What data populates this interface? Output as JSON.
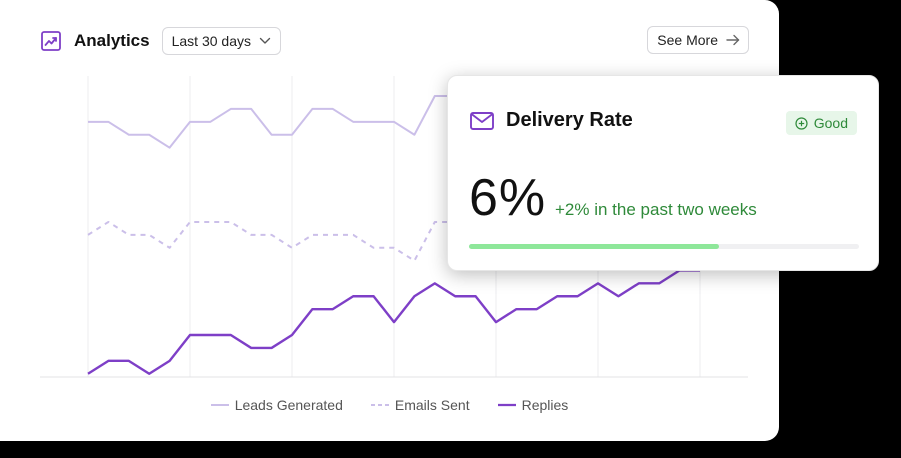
{
  "header": {
    "title": "Analytics",
    "range_label": "Last 30 days",
    "see_more_label": "See More",
    "icons": [
      "trend-chart-icon",
      "chevron-down-icon",
      "arrow-right-icon"
    ]
  },
  "chart_data": {
    "type": "line",
    "x": [
      1,
      2,
      3,
      4,
      5,
      6,
      7,
      8,
      9,
      10,
      11,
      12,
      13,
      14,
      15,
      16,
      17,
      18,
      19,
      20,
      21,
      22,
      23,
      24,
      25,
      26,
      27,
      28,
      29,
      30,
      31
    ],
    "ylim": [
      0,
      100
    ],
    "grid": "vertical",
    "legend_position": "bottom-center",
    "series": [
      {
        "name": "Leads Generated",
        "style": "solid",
        "color": "#cbbfe9",
        "values": [
          79,
          79,
          75,
          75,
          71,
          79,
          79,
          83,
          83,
          75,
          75,
          83,
          83,
          79,
          79,
          79,
          75,
          87,
          87,
          87,
          87,
          87,
          87,
          87,
          87,
          87,
          87,
          87,
          87,
          87,
          87
        ]
      },
      {
        "name": "Emails Sent",
        "style": "dashed",
        "color": "#cbbfe9",
        "values": [
          44,
          48,
          44,
          44,
          40,
          48,
          48,
          48,
          44,
          44,
          40,
          44,
          44,
          44,
          40,
          40,
          36,
          48,
          48,
          48,
          48,
          48,
          48,
          48,
          48,
          48,
          48,
          48,
          48,
          48,
          48
        ]
      },
      {
        "name": "Replies",
        "style": "solid",
        "color": "#7e3fc7",
        "values": [
          1,
          5,
          5,
          1,
          5,
          13,
          13,
          13,
          9,
          9,
          13,
          21,
          21,
          25,
          25,
          17,
          25,
          29,
          25,
          25,
          17,
          21,
          21,
          25,
          25,
          29,
          25,
          29,
          29,
          33,
          33
        ]
      }
    ]
  },
  "popup": {
    "title": "Delivery Rate",
    "badge_label": "Good",
    "value": "6%",
    "delta": "+2% in the past two weeks",
    "progress_fraction": 0.64,
    "icons": [
      "mail-icon",
      "plus-circle-icon"
    ]
  },
  "colors": {
    "accent": "#7e3fc7",
    "light_series": "#cbbfe9",
    "good": "#2f8a3a",
    "good_bg": "#e7f6e9",
    "progress": "#8ee79a"
  }
}
